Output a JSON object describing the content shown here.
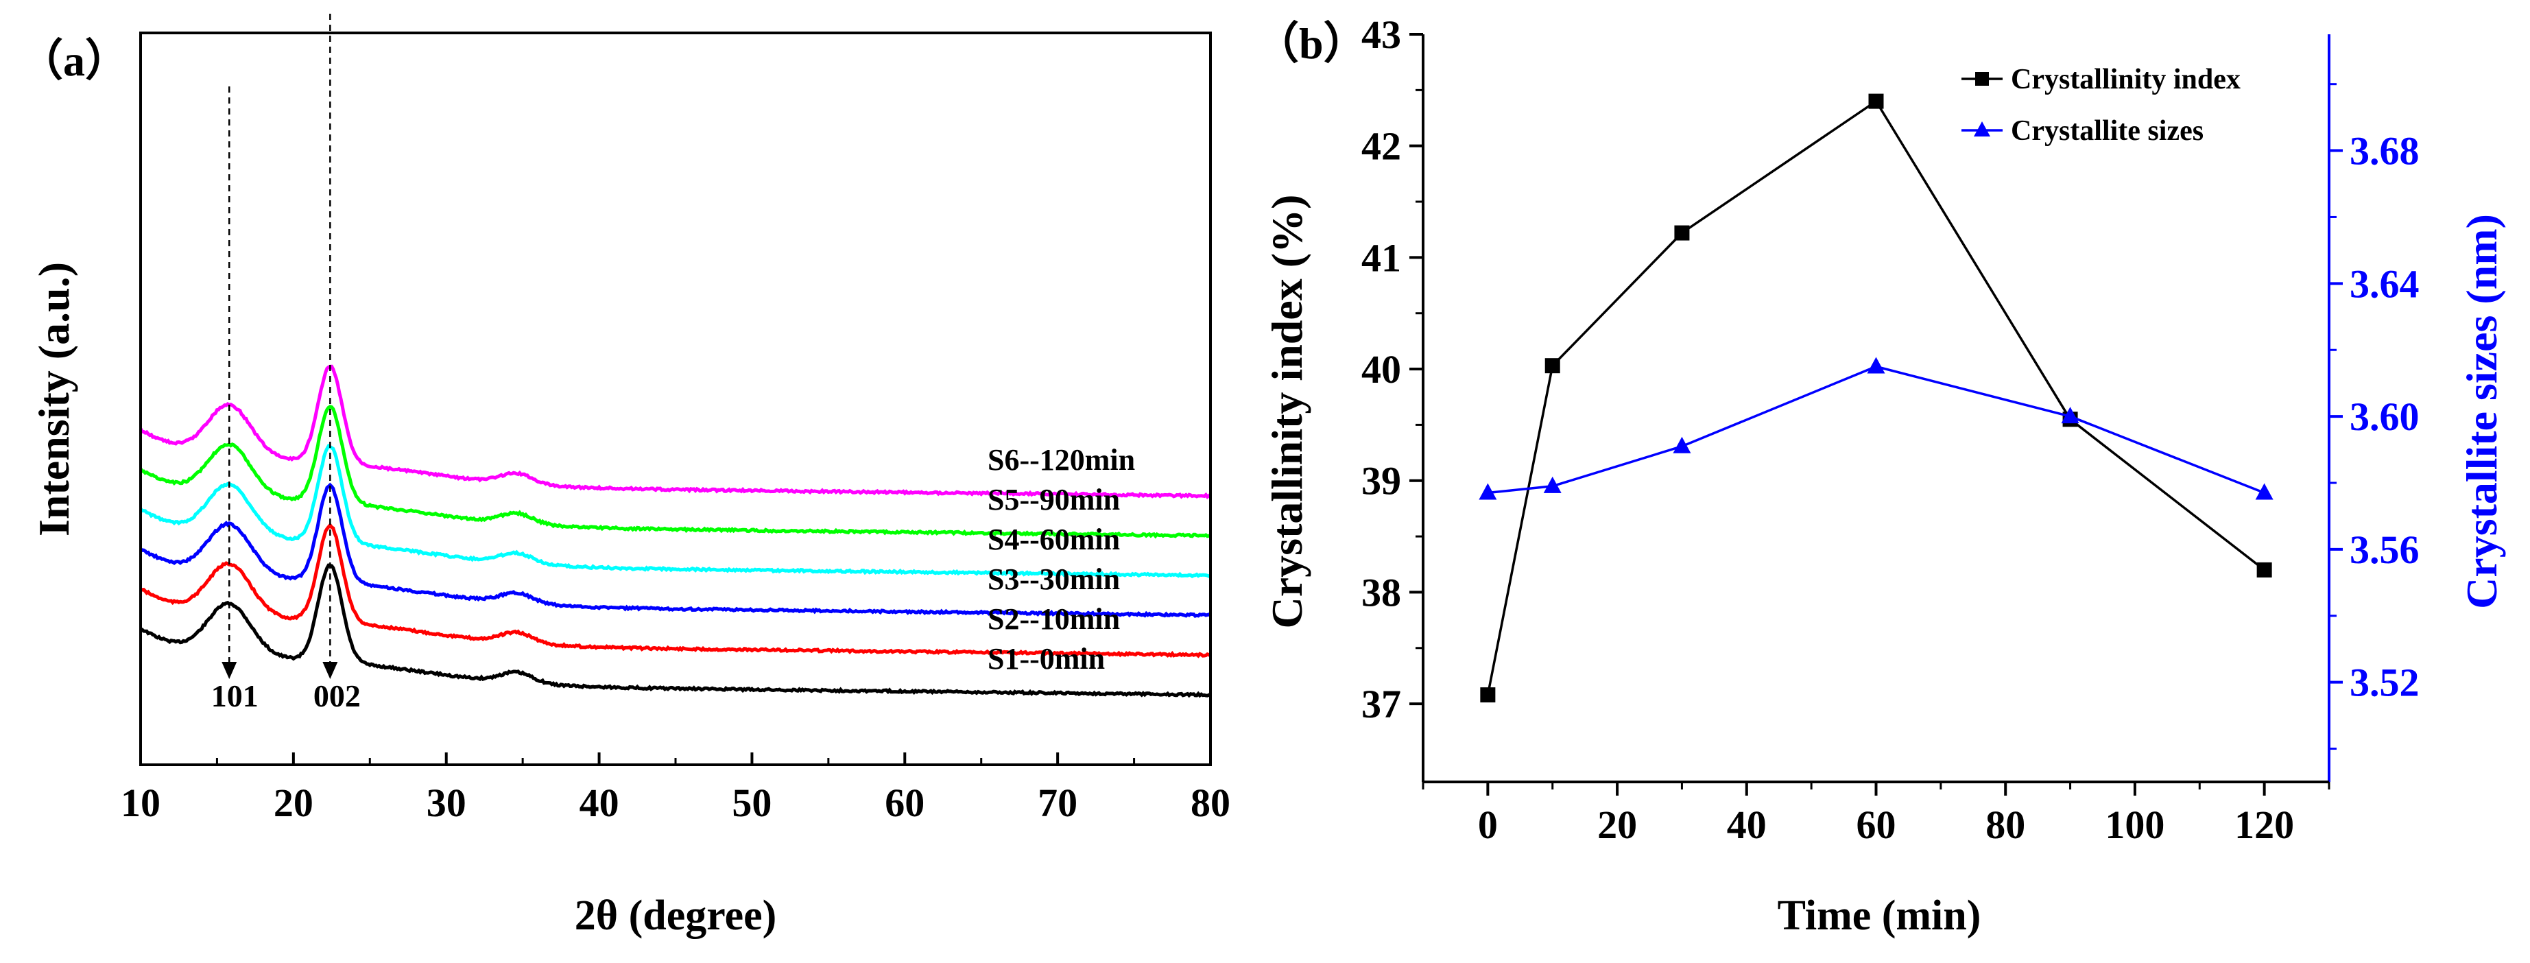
{
  "chart_data": [
    {
      "type": "line",
      "panel_label": "（a）",
      "title": "",
      "xlabel": "2θ (degree)",
      "ylabel": "Intensity (a.u.)",
      "xlim": [
        10,
        80
      ],
      "xticks": [
        10,
        20,
        30,
        40,
        50,
        60,
        70,
        80
      ],
      "peaks": [
        {
          "label": "101",
          "x": 15.8
        },
        {
          "label": "002",
          "x": 22.4
        }
      ],
      "series": [
        {
          "name": "S1--0min",
          "color": "#000000",
          "offset": 0.0
        },
        {
          "name": "S2--10min",
          "color": "#ff0000",
          "offset": 1.0
        },
        {
          "name": "S3--30min",
          "color": "#0000ff",
          "offset": 2.0
        },
        {
          "name": "S4--60min",
          "color": "#00ffff",
          "offset": 3.0
        },
        {
          "name": "S5--90min",
          "color": "#00ff00",
          "offset": 4.0
        },
        {
          "name": "S6--120min",
          "color": "#ff00ff",
          "offset": 5.0
        }
      ]
    },
    {
      "type": "line",
      "panel_label": "（b）",
      "title": "",
      "xlabel": "Time (min)",
      "ylabel": "Crystallinity index (%)",
      "ylabel_right": "Crystallite sizes (nm)",
      "xlim": [
        -10,
        130
      ],
      "xticks": [
        0,
        20,
        40,
        60,
        80,
        100,
        120
      ],
      "ylim": [
        36.3,
        43
      ],
      "yticks": [
        37,
        38,
        39,
        40,
        41,
        42,
        43
      ],
      "ylim_right": [
        3.49,
        3.715
      ],
      "yticks_right": [
        "3.52",
        "3.56",
        "3.60",
        "3.64",
        "3.68"
      ],
      "legend_position": "top-right",
      "x": [
        0,
        10,
        30,
        60,
        90,
        120
      ],
      "series": [
        {
          "name": "Crystallinity index",
          "color": "#000000",
          "marker": "square",
          "axis": "left",
          "values": [
            37.08,
            40.03,
            41.22,
            42.4,
            39.55,
            38.2
          ]
        },
        {
          "name": "Crystallite sizes",
          "color": "#0000ff",
          "marker": "triangle",
          "axis": "right",
          "values": [
            3.577,
            3.579,
            3.591,
            3.615,
            3.6,
            3.577
          ]
        }
      ]
    }
  ]
}
